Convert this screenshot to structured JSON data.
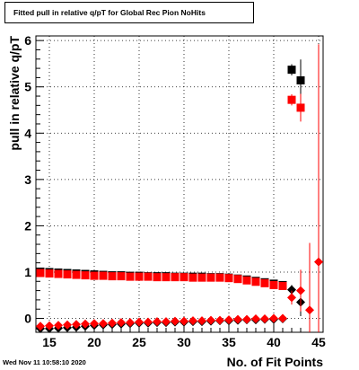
{
  "title": "Fitted pull in relative q/pT for Global Rec Pion NoHits",
  "datestamp": "Wed Nov 11 10:58:10 2020",
  "chart_data": {
    "type": "scatter",
    "title": "Fitted pull in relative q/pT for Global Rec Pion NoHits",
    "xlabel": "No. of Fit Points",
    "ylabel": "pull in relative q/pT",
    "xlim": [
      13.5,
      45.5
    ],
    "ylim": [
      -0.3,
      6.1
    ],
    "x_ticks": [
      15,
      20,
      25,
      30,
      35,
      40,
      45
    ],
    "y_ticks": [
      0,
      1,
      2,
      3,
      4,
      5,
      6
    ],
    "grid": true,
    "series": [
      {
        "color": "#000000",
        "marker": "square",
        "x": [
          14,
          15,
          16,
          17,
          18,
          19,
          20,
          21,
          22,
          23,
          24,
          25,
          26,
          27,
          28,
          29,
          30,
          31,
          32,
          33,
          34,
          35,
          36,
          37,
          38,
          39,
          40,
          41,
          42,
          43
        ],
        "y": [
          1.01,
          1.0,
          0.99,
          0.98,
          0.97,
          0.96,
          0.95,
          0.94,
          0.93,
          0.93,
          0.92,
          0.92,
          0.91,
          0.91,
          0.91,
          0.9,
          0.9,
          0.9,
          0.9,
          0.89,
          0.89,
          0.88,
          0.86,
          0.84,
          0.81,
          0.78,
          0.75,
          0.72,
          5.37,
          5.14
        ],
        "yerr": [
          0,
          0,
          0,
          0,
          0,
          0,
          0,
          0,
          0,
          0,
          0,
          0,
          0,
          0,
          0,
          0,
          0,
          0,
          0,
          0,
          0,
          0,
          0,
          0,
          0,
          0,
          0,
          0,
          0.12,
          0.45
        ]
      },
      {
        "color": "#ff0000",
        "marker": "square",
        "x": [
          14,
          15,
          16,
          17,
          18,
          19,
          20,
          21,
          22,
          23,
          24,
          25,
          26,
          27,
          28,
          29,
          30,
          31,
          32,
          33,
          34,
          35,
          36,
          37,
          38,
          39,
          40,
          41,
          42,
          43
        ],
        "y": [
          0.98,
          0.97,
          0.96,
          0.95,
          0.94,
          0.93,
          0.92,
          0.92,
          0.91,
          0.91,
          0.9,
          0.9,
          0.9,
          0.89,
          0.89,
          0.89,
          0.89,
          0.88,
          0.88,
          0.88,
          0.88,
          0.87,
          0.85,
          0.82,
          0.79,
          0.76,
          0.72,
          0.7,
          4.72,
          4.55
        ],
        "yerr": [
          0,
          0,
          0,
          0,
          0,
          0,
          0,
          0,
          0,
          0,
          0,
          0,
          0,
          0,
          0,
          0,
          0,
          0,
          0,
          0,
          0,
          0,
          0,
          0,
          0,
          0,
          0,
          0,
          0.12,
          0.3
        ]
      },
      {
        "color": "#000000",
        "marker": "diamond",
        "x": [
          14,
          15,
          16,
          17,
          18,
          19,
          20,
          21,
          22,
          23,
          24,
          25,
          26,
          27,
          28,
          29,
          30,
          31,
          32,
          33,
          34,
          35,
          36,
          37,
          38,
          39,
          40,
          41,
          42,
          43
        ],
        "y": [
          -0.22,
          -0.22,
          -0.21,
          -0.2,
          -0.19,
          -0.17,
          -0.15,
          -0.14,
          -0.13,
          -0.12,
          -0.11,
          -0.1,
          -0.1,
          -0.09,
          -0.09,
          -0.08,
          -0.08,
          -0.07,
          -0.07,
          -0.06,
          -0.05,
          -0.05,
          -0.04,
          -0.03,
          -0.03,
          -0.02,
          -0.02,
          -0.01,
          0.62,
          0.35
        ],
        "yerr": [
          0,
          0,
          0,
          0,
          0,
          0,
          0,
          0,
          0,
          0,
          0,
          0,
          0,
          0,
          0,
          0,
          0,
          0,
          0,
          0,
          0,
          0,
          0,
          0,
          0,
          0,
          0,
          0,
          0.1,
          0.3
        ]
      },
      {
        "color": "#ff0000",
        "marker": "diamond",
        "x": [
          14,
          15,
          16,
          17,
          18,
          19,
          20,
          21,
          22,
          23,
          24,
          25,
          26,
          27,
          28,
          29,
          30,
          31,
          32,
          33,
          34,
          35,
          36,
          37,
          38,
          39,
          40,
          41,
          42,
          43,
          44,
          45
        ],
        "y": [
          -0.17,
          -0.16,
          -0.15,
          -0.14,
          -0.13,
          -0.12,
          -0.11,
          -0.11,
          -0.1,
          -0.09,
          -0.09,
          -0.08,
          -0.08,
          -0.07,
          -0.07,
          -0.06,
          -0.06,
          -0.05,
          -0.05,
          -0.04,
          -0.04,
          -0.03,
          -0.02,
          -0.02,
          -0.01,
          -0.01,
          0,
          0,
          0.45,
          0.6,
          0.18,
          1.22
        ],
        "yerr": [
          0,
          0,
          0,
          0,
          0,
          0,
          0,
          0,
          0,
          0,
          0,
          0,
          0,
          0,
          0,
          0,
          0,
          0,
          0,
          0,
          0,
          0,
          0,
          0,
          0,
          0,
          0,
          0,
          0.15,
          0.45,
          1.45,
          4.7
        ]
      }
    ]
  }
}
